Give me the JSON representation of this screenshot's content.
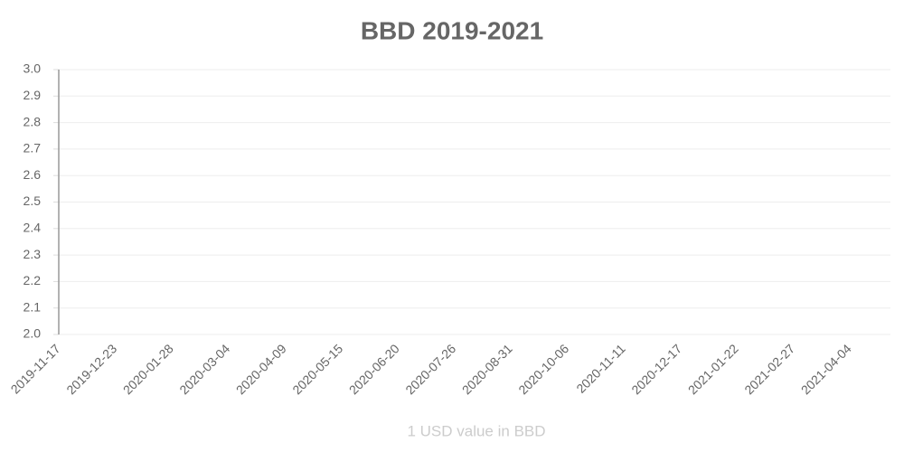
{
  "chart_data": {
    "type": "line",
    "title": "BBD 2019-2021",
    "x_label": "1 USD value in BBD",
    "xticks": [
      "2019-11-17",
      "2019-12-23",
      "2020-01-28",
      "2020-03-04",
      "2020-04-09",
      "2020-05-15",
      "2020-06-20",
      "2020-07-26",
      "2020-08-31",
      "2020-10-06",
      "2020-11-11",
      "2020-12-17",
      "2021-01-22",
      "2021-02-27",
      "2021-04-04"
    ],
    "ylim": [
      2.0,
      3.0
    ],
    "yticks": [
      {
        "value": 2.0,
        "label": "2.0"
      },
      2.1,
      2.2,
      2.3,
      2.4,
      2.5,
      2.6,
      2.7,
      2.8,
      2.9,
      {
        "value": 3.0,
        "label": "3.0"
      }
    ],
    "grid": true
  }
}
